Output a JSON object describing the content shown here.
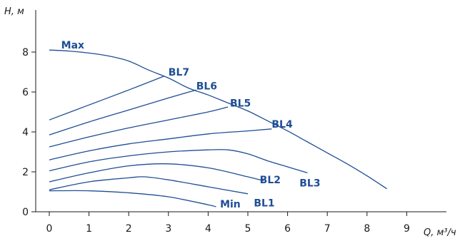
{
  "chart_data": {
    "type": "line",
    "title": "",
    "xlabel": "Q, м³/ч",
    "ylabel": "H, м",
    "xlim": [
      0,
      10
    ],
    "ylim": [
      0,
      9
    ],
    "x_ticks": [
      0,
      1,
      2,
      3,
      4,
      5,
      6,
      7,
      8,
      9
    ],
    "y_ticks": [
      0,
      2,
      4,
      6,
      8
    ],
    "grid": false,
    "legend": "none",
    "line_color": "#1f4e96",
    "series": [
      {
        "name": "Max",
        "x": [
          0,
          0.5,
          1,
          1.5,
          2,
          2.5,
          3,
          3.5,
          4,
          4.5,
          5,
          5.5,
          6,
          6.5,
          7,
          7.5,
          8,
          8.5
        ],
        "y": [
          8.1,
          8.05,
          7.95,
          7.8,
          7.55,
          7.1,
          6.7,
          6.2,
          5.85,
          5.45,
          5.05,
          4.55,
          4.05,
          3.5,
          2.95,
          2.4,
          1.8,
          1.15
        ]
      },
      {
        "name": "BL7",
        "x": [
          0,
          1,
          2,
          2.9
        ],
        "y": [
          4.6,
          5.35,
          6.1,
          6.8
        ]
      },
      {
        "name": "BL6",
        "x": [
          0,
          1,
          2,
          3,
          3.7
        ],
        "y": [
          3.85,
          4.5,
          5.1,
          5.7,
          6.1
        ]
      },
      {
        "name": "BL5",
        "x": [
          0,
          1,
          2,
          3,
          4,
          4.5
        ],
        "y": [
          3.25,
          3.75,
          4.2,
          4.6,
          5.0,
          5.25
        ]
      },
      {
        "name": "BL4",
        "x": [
          0,
          1,
          2,
          3,
          4,
          5,
          5.6
        ],
        "y": [
          2.6,
          3.05,
          3.4,
          3.65,
          3.9,
          4.05,
          4.15
        ]
      },
      {
        "name": "BL3",
        "x": [
          0,
          1,
          2,
          3,
          4,
          4.5,
          5,
          5.5,
          6,
          6.5
        ],
        "y": [
          2.05,
          2.5,
          2.8,
          3.0,
          3.1,
          3.1,
          2.9,
          2.55,
          2.25,
          1.95
        ]
      },
      {
        "name": "BL2",
        "x": [
          0,
          1,
          2,
          3,
          4,
          5,
          5.4
        ],
        "y": [
          1.5,
          1.95,
          2.3,
          2.4,
          2.2,
          1.75,
          1.55
        ]
      },
      {
        "name": "BL1",
        "x": [
          0,
          1,
          2,
          2.4,
          3,
          4,
          5
        ],
        "y": [
          1.1,
          1.5,
          1.7,
          1.75,
          1.6,
          1.25,
          0.9
        ]
      },
      {
        "name": "Min",
        "x": [
          0,
          1,
          2,
          3,
          4,
          4.2
        ],
        "y": [
          1.05,
          1.05,
          0.95,
          0.75,
          0.35,
          0.25
        ]
      }
    ],
    "labels": [
      {
        "text": "Max",
        "x": 0.3,
        "y": 8.35
      },
      {
        "text": "BL7",
        "x": 3.0,
        "y": 7.0
      },
      {
        "text": "BL6",
        "x": 3.7,
        "y": 6.3
      },
      {
        "text": "BL5",
        "x": 4.55,
        "y": 5.45
      },
      {
        "text": "BL4",
        "x": 5.6,
        "y": 4.4
      },
      {
        "text": "BL3",
        "x": 6.3,
        "y": 1.45
      },
      {
        "text": "BL2",
        "x": 5.3,
        "y": 1.6
      },
      {
        "text": "BL1",
        "x": 5.15,
        "y": 0.45
      },
      {
        "text": "Min",
        "x": 4.3,
        "y": 0.4
      }
    ]
  }
}
